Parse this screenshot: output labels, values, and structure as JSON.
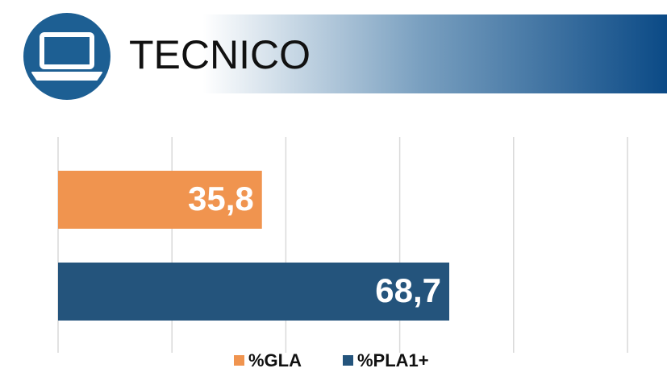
{
  "chart_data": {
    "type": "bar",
    "orientation": "horizontal",
    "title": "TECNICO",
    "series": [
      {
        "name": "%GLA",
        "color": "#f0944f",
        "values": [
          35.8
        ],
        "value_labels": [
          "35,8"
        ]
      },
      {
        "name": "%PLA1+",
        "color": "#24547c",
        "values": [
          68.7
        ],
        "value_labels": [
          "68,7"
        ]
      }
    ],
    "xlim": [
      0,
      100
    ],
    "xticks": [
      0,
      20,
      40,
      60,
      80,
      100
    ],
    "grid": true
  }
}
